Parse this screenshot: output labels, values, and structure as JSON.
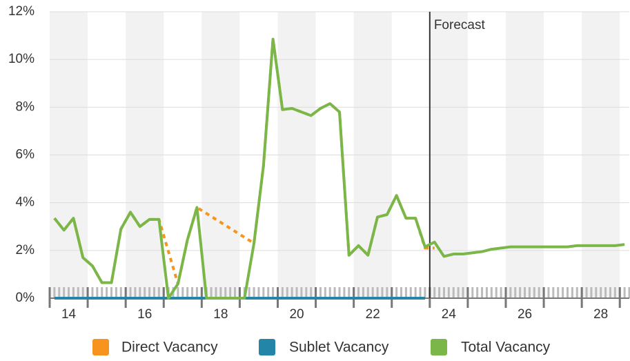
{
  "chart_data": {
    "type": "line",
    "x": [
      13.625,
      13.875,
      14.125,
      14.375,
      14.625,
      14.875,
      15.125,
      15.375,
      15.625,
      15.875,
      16.125,
      16.375,
      16.625,
      16.875,
      17.125,
      17.375,
      17.625,
      17.875,
      18.125,
      18.375,
      18.625,
      18.875,
      19.125,
      19.375,
      19.625,
      19.875,
      20.125,
      20.375,
      20.625,
      20.875,
      21.125,
      21.375,
      21.625,
      21.875,
      22.125,
      22.375,
      22.625,
      22.875,
      23.125,
      23.375,
      23.625,
      23.875,
      24.125,
      24.375,
      24.625,
      24.875,
      25.125,
      25.375,
      25.625,
      25.875,
      26.125,
      26.375,
      26.625,
      26.875,
      27.125,
      27.375,
      27.625,
      27.875,
      28.125,
      28.375,
      28.625
    ],
    "series": [
      {
        "name": "Direct Vacancy",
        "color": "#f7941d",
        "x": [
          13.625,
          13.875,
          14.125,
          14.375,
          14.625,
          14.875,
          15.125,
          15.375,
          15.625,
          15.875,
          16.125,
          16.375,
          16.875,
          17.125,
          17.375,
          18.875,
          19.125,
          19.375,
          19.625,
          19.875,
          20.125,
          20.375,
          20.625,
          20.875,
          21.125,
          21.375,
          21.625,
          21.875,
          22.125,
          22.375,
          22.625,
          22.875,
          23.125,
          23.375,
          23.625
        ],
        "values": [
          3.35,
          2.85,
          3.35,
          1.7,
          1.35,
          0.65,
          0.65,
          2.9,
          3.6,
          3.0,
          3.3,
          3.3,
          0.6,
          2.45,
          3.8,
          2.3,
          5.55,
          10.85,
          7.9,
          7.95,
          7.8,
          7.65,
          7.95,
          8.15,
          7.8,
          1.8,
          2.2,
          1.8,
          3.4,
          3.5,
          4.3,
          3.35,
          3.35,
          2.1,
          2.1
        ]
      },
      {
        "name": "Sublet Vacancy",
        "color": "#2385a8",
        "values": [
          0,
          0,
          0,
          0,
          0,
          0,
          0,
          0,
          0,
          0,
          0,
          0,
          0,
          0,
          0,
          0,
          0,
          0,
          0,
          0,
          0,
          0,
          0,
          0,
          0,
          0,
          0,
          0,
          0,
          0,
          0,
          0,
          0,
          0,
          0,
          0,
          0,
          0,
          0,
          0,
          null,
          null,
          null,
          null,
          null,
          null,
          null,
          null,
          null,
          null,
          null,
          null,
          null,
          null,
          null,
          null,
          null,
          null,
          null,
          null,
          null
        ]
      },
      {
        "name": "Total Vacancy",
        "color": "#7ab648",
        "values": [
          3.35,
          2.85,
          3.35,
          1.7,
          1.35,
          0.65,
          0.65,
          2.9,
          3.6,
          3.0,
          3.3,
          3.3,
          0,
          0.6,
          2.45,
          3.8,
          0,
          0,
          0,
          0,
          0,
          2.3,
          5.55,
          10.85,
          7.9,
          7.95,
          7.8,
          7.65,
          7.95,
          8.15,
          7.8,
          1.8,
          2.2,
          1.8,
          3.4,
          3.5,
          4.3,
          3.35,
          3.35,
          2.15,
          2.35,
          1.75,
          1.85,
          1.85,
          1.9,
          1.95,
          2.05,
          2.1,
          2.15,
          2.15,
          2.15,
          2.15,
          2.15,
          2.15,
          2.15,
          2.2,
          2.2,
          2.2,
          2.2,
          2.2,
          2.25
        ]
      }
    ],
    "xlim": [
      13.5,
      28.75
    ],
    "xticks": [
      14,
      16,
      18,
      20,
      22,
      24,
      26,
      28
    ],
    "ylim": [
      0,
      12
    ],
    "yticks": [
      {
        "value": 0,
        "label": "0%"
      },
      {
        "value": 2,
        "label": "2%"
      },
      {
        "value": 4,
        "label": "4%"
      },
      {
        "value": 6,
        "label": "6%"
      },
      {
        "value": 8,
        "label": "8%"
      },
      {
        "value": 10,
        "label": "10%"
      },
      {
        "value": 12,
        "label": "12%"
      }
    ],
    "forecast": {
      "x": 23.5,
      "label": "Forecast"
    },
    "legend": "bottom",
    "grid": true
  }
}
